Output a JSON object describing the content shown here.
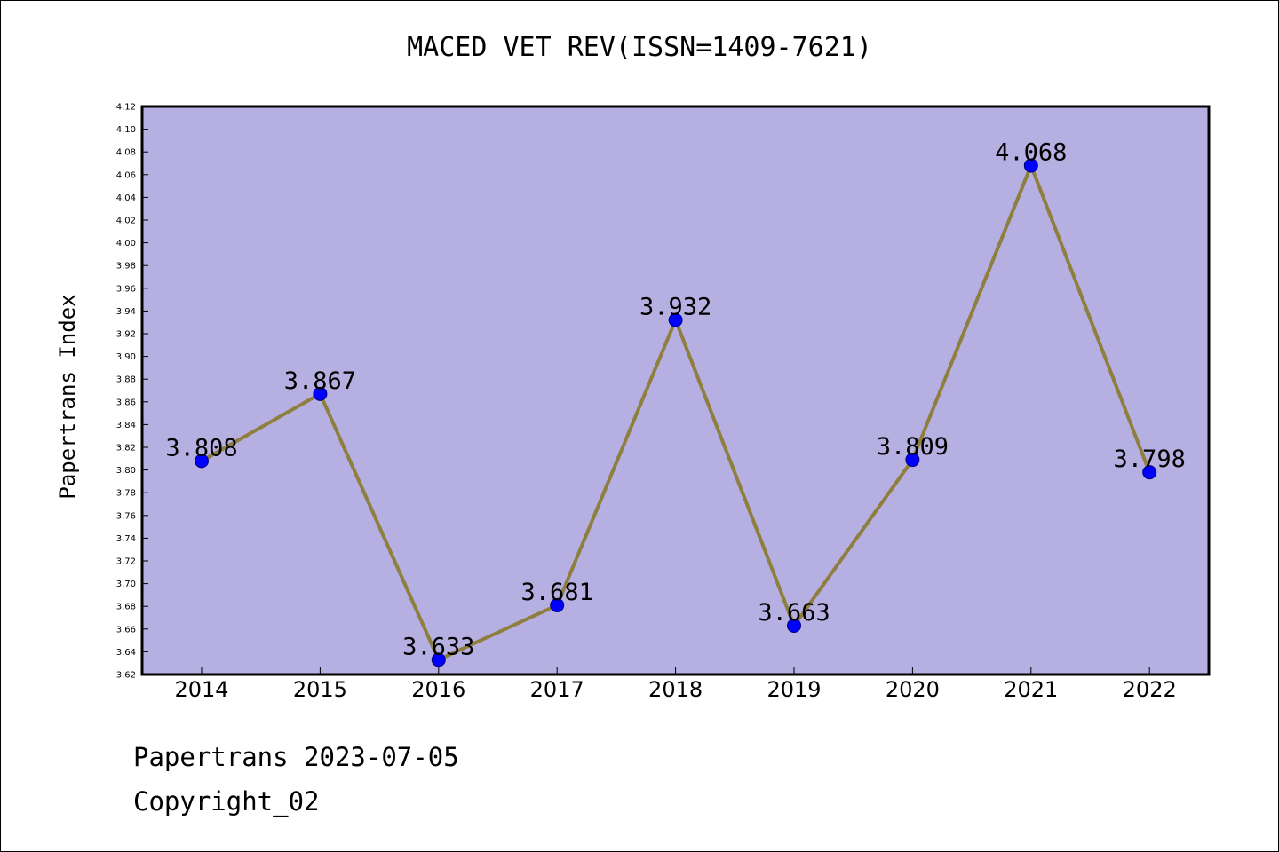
{
  "header": {
    "title": "MACED VET REV(ISSN=1409-7621)"
  },
  "footer": {
    "line1": "Papertrans 2023-07-05",
    "line2": "Copyright_02"
  },
  "chart_data": {
    "type": "line",
    "title": "MACED VET REV(ISSN=1409-7621)",
    "xlabel": "",
    "ylabel": "Papertrans Index",
    "categories": [
      "2014",
      "2015",
      "2016",
      "2017",
      "2018",
      "2019",
      "2020",
      "2021",
      "2022"
    ],
    "values": [
      3.808,
      3.867,
      3.633,
      3.681,
      3.932,
      3.663,
      3.809,
      4.068,
      3.798
    ],
    "data_labels": [
      "3.808",
      "3.867",
      "3.633",
      "3.681",
      "3.932",
      "3.663",
      "3.809",
      "4.068",
      "3.798"
    ],
    "ylim": [
      3.62,
      4.12
    ],
    "ytick_step": 0.02,
    "grid": false,
    "colors": {
      "plot_background": "#b5afe2",
      "line": "#8f7f3e",
      "marker": "#0000ff",
      "marker_edge": "#000080"
    }
  }
}
